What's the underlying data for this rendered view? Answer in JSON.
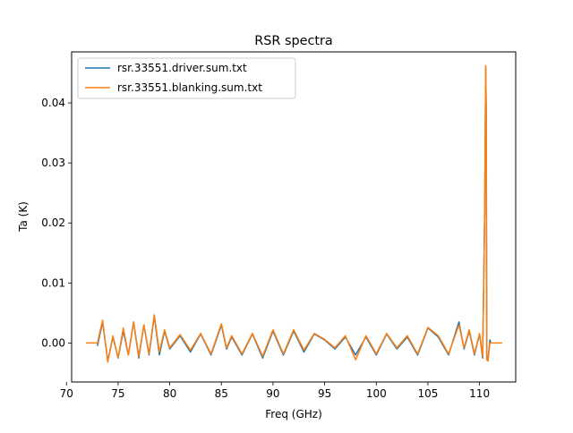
{
  "chart_data": {
    "type": "line",
    "title": "RSR spectra",
    "xlabel": "Freq  (GHz)",
    "ylabel": "Ta (K)",
    "xlim": [
      70.5,
      113.5
    ],
    "ylim": [
      -0.0065,
      0.0485
    ],
    "xticks": [
      70,
      75,
      80,
      85,
      90,
      95,
      100,
      105,
      110
    ],
    "yticks": [
      0.0,
      0.01,
      0.02,
      0.03,
      0.04
    ],
    "ytick_labels": [
      "0.00",
      "0.01",
      "0.02",
      "0.03",
      "0.04"
    ],
    "grid": false,
    "legend_position": "upper-left",
    "series": [
      {
        "name": "rsr.33551.driver.sum.txt",
        "color": "#1f77b4",
        "x": [
          73.0,
          73.5,
          74.0,
          74.5,
          75.0,
          75.5,
          76.0,
          76.5,
          77.0,
          77.5,
          78.0,
          78.5,
          79.0,
          79.5,
          80.0,
          81.0,
          82.0,
          83.0,
          84.0,
          85.0,
          85.5,
          86.0,
          87.0,
          88.0,
          89.0,
          90.0,
          91.0,
          92.0,
          93.0,
          94.0,
          95.0,
          96.0,
          97.0,
          98.0,
          99.0,
          100.0,
          101.0,
          102.0,
          103.0,
          104.0,
          105.0,
          106.0,
          107.0,
          108.0,
          108.5,
          109.0,
          109.5,
          110.0,
          110.3,
          110.5,
          110.6,
          110.65,
          110.7,
          110.8,
          111.0,
          111.1
        ],
        "y": [
          -0.0005,
          0.0035,
          -0.003,
          0.001,
          -0.0025,
          0.002,
          -0.002,
          0.0035,
          -0.0025,
          0.003,
          -0.002,
          0.0045,
          -0.002,
          0.002,
          -0.001,
          0.0012,
          -0.0015,
          0.0015,
          -0.002,
          0.003,
          -0.001,
          0.001,
          -0.002,
          0.0015,
          -0.0025,
          0.002,
          -0.002,
          0.002,
          -0.0015,
          0.0015,
          0.0005,
          -0.001,
          0.001,
          -0.002,
          0.001,
          -0.002,
          0.0015,
          -0.001,
          0.001,
          -0.002,
          0.0025,
          0.001,
          -0.002,
          0.0035,
          -0.001,
          0.002,
          -0.002,
          0.0015,
          -0.0025,
          0.022,
          0.046,
          0.038,
          -0.0025,
          -0.003,
          0.0005,
          0.0
        ]
      },
      {
        "name": "rsr.33551.blanking.sum.txt",
        "color": "#ff7f0e",
        "x": [
          71.9,
          72.8,
          73.0,
          73.5,
          74.0,
          74.5,
          75.0,
          75.5,
          76.0,
          76.5,
          77.0,
          77.5,
          78.0,
          78.5,
          79.0,
          79.5,
          80.0,
          81.0,
          82.0,
          83.0,
          84.0,
          85.0,
          85.5,
          86.0,
          87.0,
          88.0,
          89.0,
          90.0,
          91.0,
          92.0,
          93.0,
          94.0,
          95.0,
          96.0,
          97.0,
          98.0,
          99.0,
          100.0,
          101.0,
          102.0,
          103.0,
          104.0,
          105.0,
          106.0,
          107.0,
          108.0,
          108.5,
          109.0,
          109.5,
          110.0,
          110.3,
          110.5,
          110.6,
          110.65,
          110.7,
          110.8,
          111.0,
          111.2,
          112.2
        ],
        "y": [
          0.0,
          0.0,
          0.0,
          0.0038,
          -0.0032,
          0.0012,
          -0.0025,
          0.0025,
          -0.002,
          0.0035,
          -0.0022,
          0.003,
          -0.0018,
          0.0047,
          -0.0015,
          0.0022,
          -0.0008,
          0.0014,
          -0.0012,
          0.0016,
          -0.0018,
          0.0032,
          -0.0008,
          0.0012,
          -0.0018,
          0.0016,
          -0.0022,
          0.0022,
          -0.0018,
          0.0022,
          -0.0012,
          0.0016,
          0.0006,
          -0.0008,
          0.0012,
          -0.0028,
          0.0012,
          -0.0018,
          0.0016,
          -0.0008,
          0.0012,
          -0.0018,
          0.0026,
          0.0012,
          -0.0018,
          0.003,
          -0.0008,
          0.0022,
          -0.0018,
          0.0016,
          -0.0022,
          0.022,
          0.0462,
          0.039,
          -0.0028,
          -0.003,
          0.0,
          0.0,
          0.0
        ]
      }
    ]
  }
}
